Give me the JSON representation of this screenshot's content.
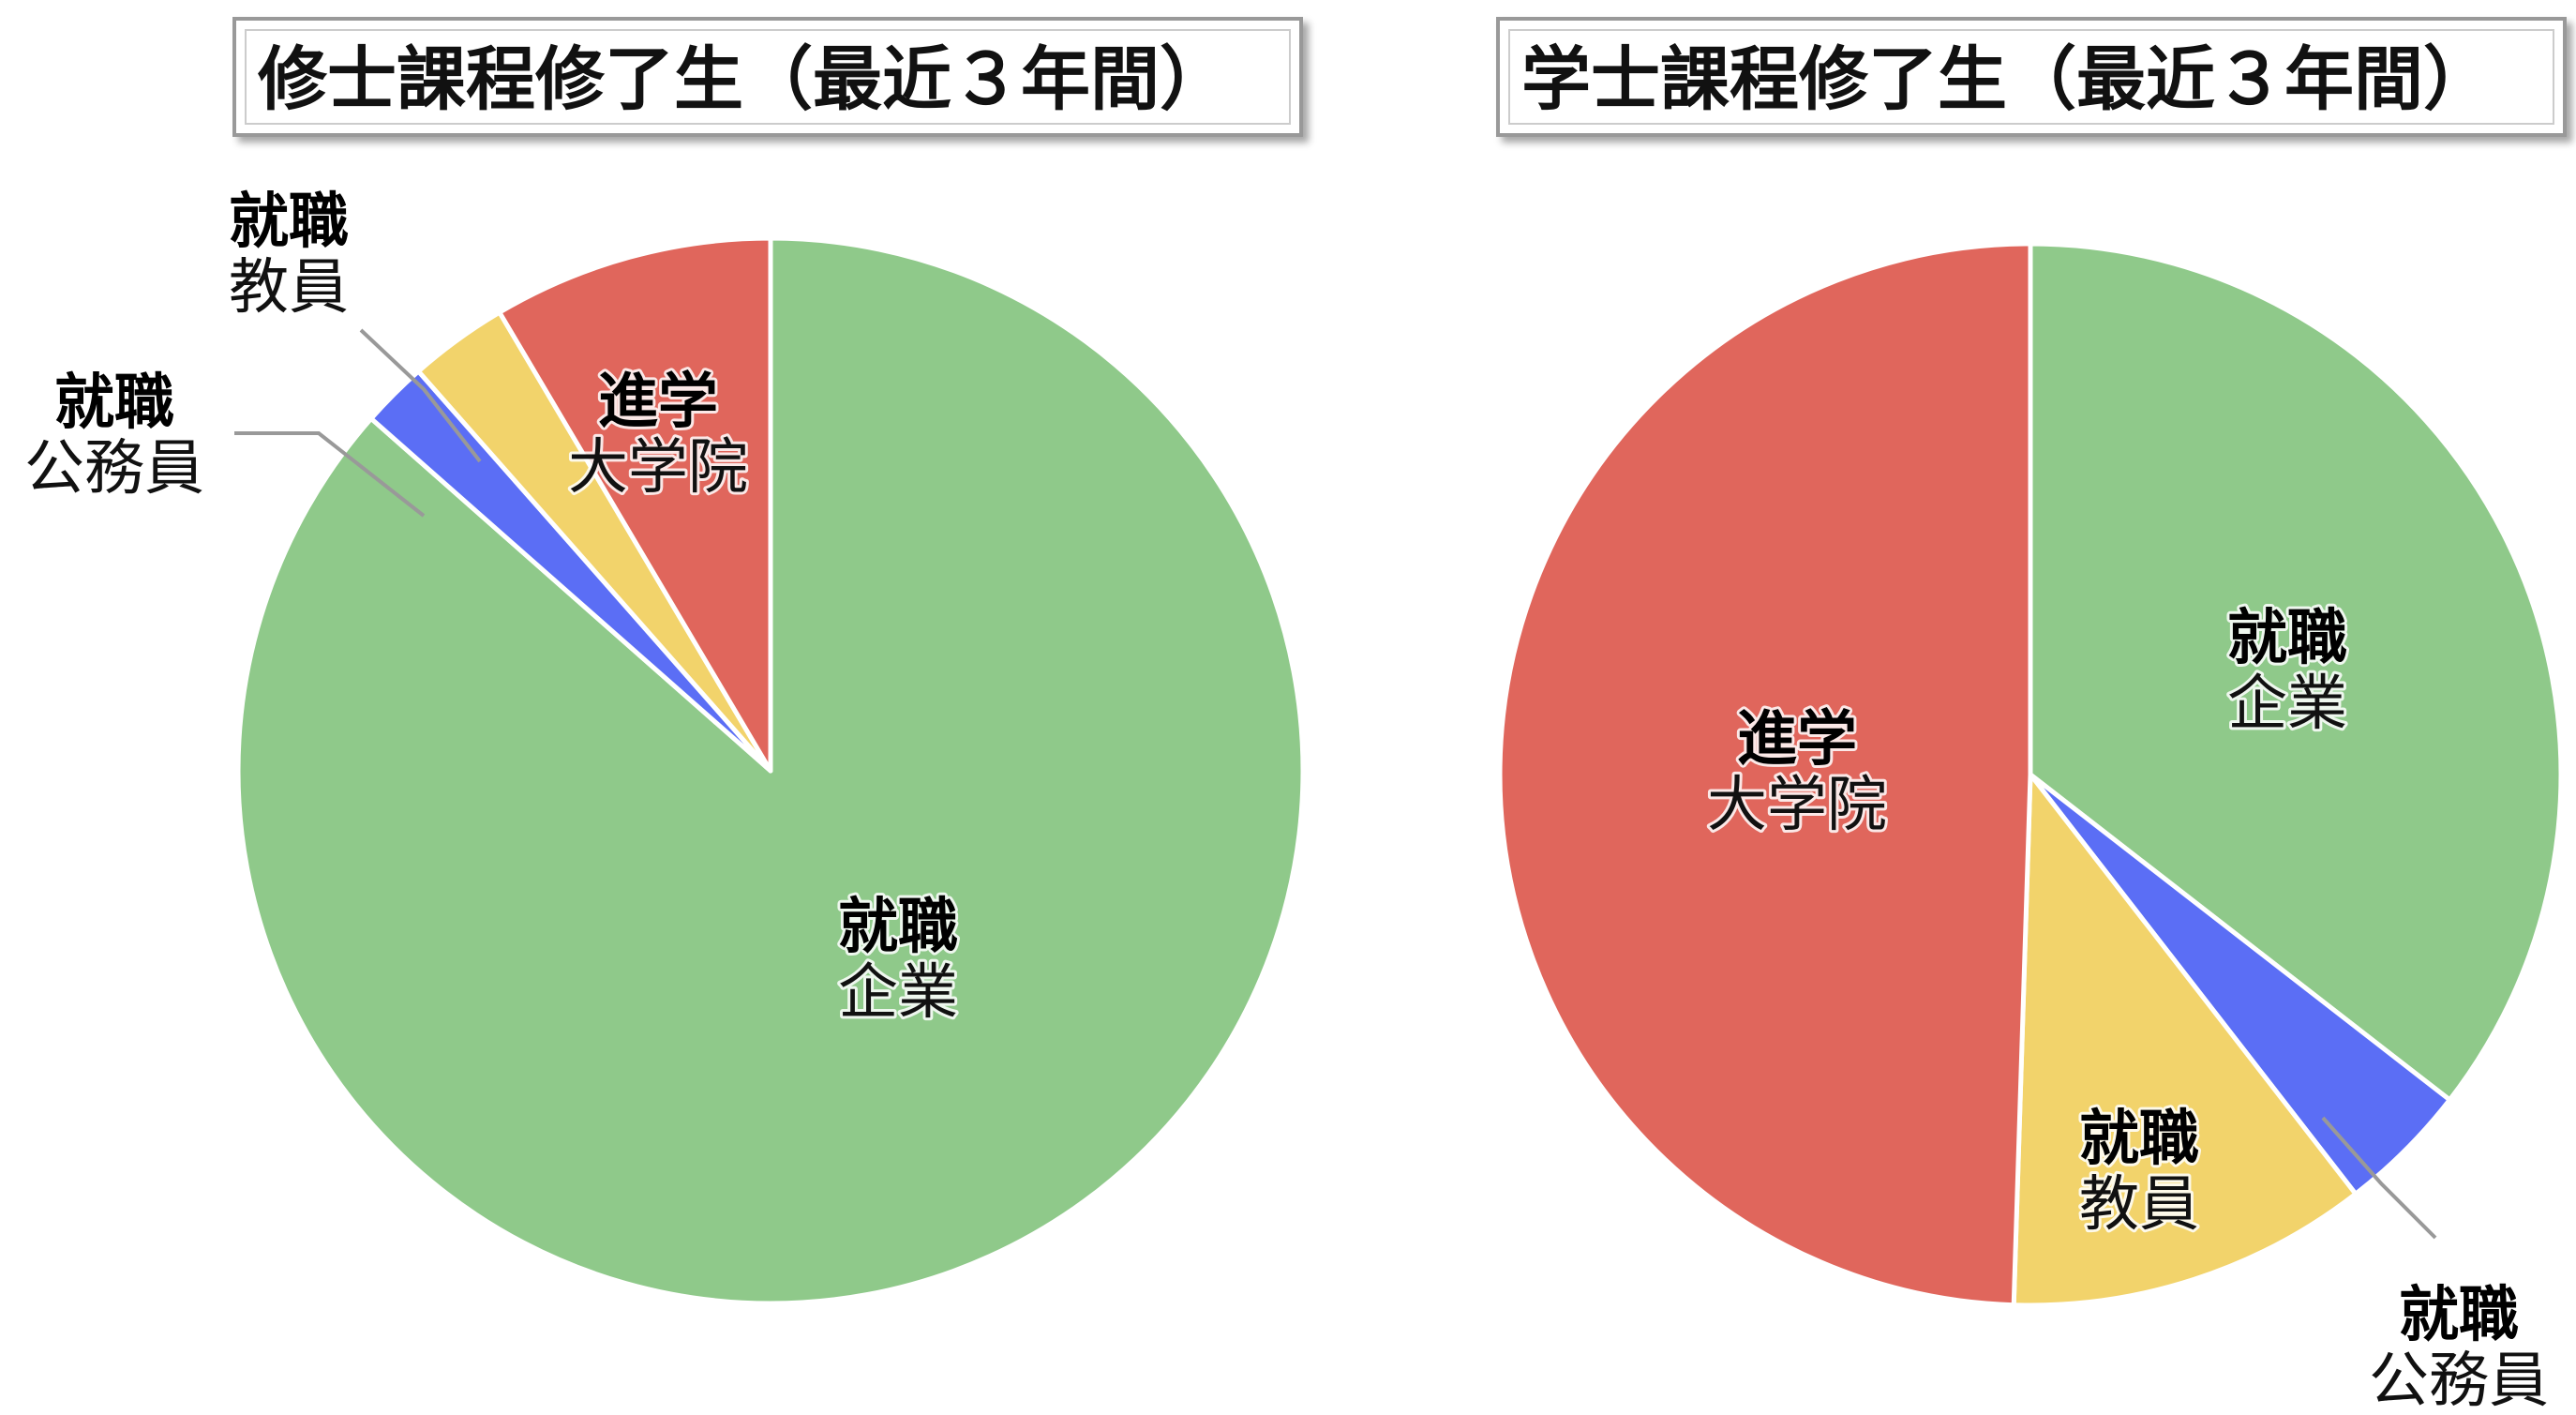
{
  "chart_data": [
    {
      "type": "pie",
      "title": "修士課程修了生（最近３年間）",
      "slices": [
        {
          "category": "就職",
          "label": "企業",
          "value": 86.5,
          "color": "#8FC98A"
        },
        {
          "category": "就職",
          "label": "公務員",
          "value": 2.0,
          "color": "#5B6EF5"
        },
        {
          "category": "就職",
          "label": "教員",
          "value": 3.0,
          "color": "#F2D36B"
        },
        {
          "category": "進学",
          "label": "大学院",
          "value": 8.5,
          "color": "#E0665C"
        }
      ]
    },
    {
      "type": "pie",
      "title": "学士課程修了生（最近３年間）",
      "slices": [
        {
          "category": "就職",
          "label": "企業",
          "value": 35.5,
          "color": "#8FC98A"
        },
        {
          "category": "就職",
          "label": "公務員",
          "value": 4.0,
          "color": "#5B6EF5"
        },
        {
          "category": "就職",
          "label": "教員",
          "value": 11.0,
          "color": "#F2D36B"
        },
        {
          "category": "進学",
          "label": "大学院",
          "value": 49.5,
          "color": "#E0665C"
        }
      ]
    }
  ]
}
